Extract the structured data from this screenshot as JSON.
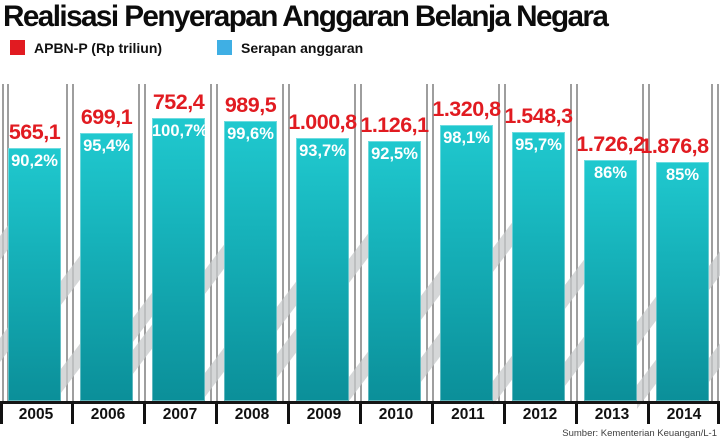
{
  "page": {
    "title": "Realisasi Penyerapan Anggaran Belanja Negara",
    "source": "Sumber: Kementerian Keuangan/L-1"
  },
  "legend": {
    "items": [
      {
        "label": "APBN-P (Rp triliun)",
        "color": "#e11b21"
      },
      {
        "label": "Serapan anggaran",
        "color": "#3fafe4"
      }
    ],
    "position": "top"
  },
  "colors": {
    "bar_top": "#20c9cf",
    "bar_bottom": "#0b8f99",
    "value_label_red": "#e11b21",
    "percent_label_white": "#ffffff",
    "pillar_gray": "#9e9e9e",
    "baseline_black": "#151515"
  },
  "chart_data": {
    "type": "bar",
    "title": "Realisasi Penyerapan Anggaran Belanja Negara",
    "categories": [
      "2005",
      "2006",
      "2007",
      "2008",
      "2009",
      "2010",
      "2011",
      "2012",
      "2013",
      "2014"
    ],
    "series": [
      {
        "name": "APBN-P (Rp triliun)",
        "role": "value labels above bars (red)",
        "color": "#e11b21",
        "values": [
          565.1,
          699.1,
          752.4,
          989.5,
          1000.8,
          1126.1,
          1320.8,
          1548.3,
          1726.2,
          1876.8
        ],
        "labels": [
          "565,1",
          "699,1",
          "752,4",
          "989,5",
          "1.000,8",
          "1.126,1",
          "1.320,8",
          "1.548,3",
          "1.726,2",
          "1.876,8"
        ]
      },
      {
        "name": "Serapan anggaran",
        "role": "teal bar heights, percent labels inside bars",
        "unit": "%",
        "color": "#12b0b8",
        "values": [
          90.2,
          95.4,
          100.7,
          99.6,
          93.7,
          92.5,
          98.1,
          95.7,
          86,
          85
        ],
        "labels": [
          "90,2%",
          "95,4%",
          "100,7%",
          "99,6%",
          "93,7%",
          "92,5%",
          "98,1%",
          "95,7%",
          "86%",
          "85%"
        ]
      }
    ],
    "legend_position": "top",
    "grid": false,
    "xlabel": "",
    "ylabel": "",
    "note": "Bar height encodes Serapan anggaran (%); red numbers above bars are APBN-P budget in Rp trillion."
  }
}
